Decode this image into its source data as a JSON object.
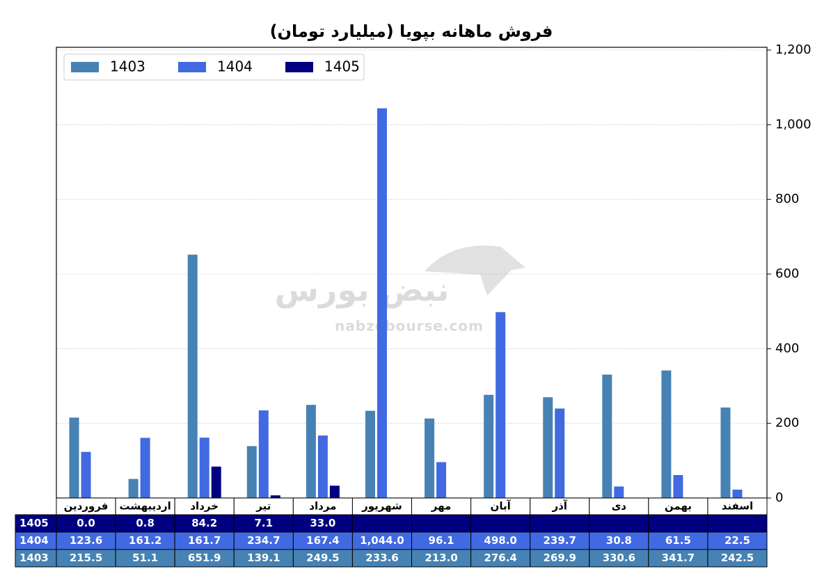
{
  "chart_data": {
    "type": "bar",
    "title": "فروش ماهانه بپویا (میلیارد تومان)",
    "categories": [
      "فروردین",
      "اردیبهشت",
      "خرداد",
      "تیر",
      "مرداد",
      "شهریور",
      "مهر",
      "آبان",
      "آذر",
      "دی",
      "بهمن",
      "اسفند"
    ],
    "series": [
      {
        "name": "1403",
        "color": "#4682b4",
        "values": [
          215.5,
          51.1,
          651.9,
          139.1,
          249.5,
          233.6,
          213.0,
          276.4,
          269.9,
          330.6,
          341.7,
          242.5
        ],
        "value_labels": [
          "215.5",
          "51.1",
          "651.9",
          "139.1",
          "249.5",
          "233.6",
          "213.0",
          "276.4",
          "269.9",
          "330.6",
          "341.7",
          "242.5"
        ]
      },
      {
        "name": "1404",
        "color": "#4169e1",
        "values": [
          123.6,
          161.2,
          161.7,
          234.7,
          167.4,
          1044.0,
          96.1,
          498.0,
          239.7,
          30.8,
          61.5,
          22.5
        ],
        "value_labels": [
          "123.6",
          "161.2",
          "161.7",
          "234.7",
          "167.4",
          "1,044.0",
          "96.1",
          "498.0",
          "239.7",
          "30.8",
          "61.5",
          "22.5"
        ]
      },
      {
        "name": "1405",
        "color": "#000080",
        "values": [
          0.0,
          0.8,
          84.2,
          7.1,
          33.0,
          null,
          null,
          null,
          null,
          null,
          null,
          null
        ],
        "value_labels": [
          "0.0",
          "0.8",
          "84.2",
          "7.1",
          "33.0",
          null,
          null,
          null,
          null,
          null,
          null,
          null
        ]
      }
    ],
    "ylim": [
      0,
      1200
    ],
    "yticks": [
      0,
      200,
      400,
      600,
      800,
      {
        "value": 1000,
        "label": "1,000"
      },
      {
        "value": 1200,
        "label": "1,200"
      }
    ],
    "y_axis_side": "right",
    "grid": true,
    "legend": "upper left",
    "watermark": {
      "logo": "نبض بورس",
      "url": "nabzebourse.com"
    }
  }
}
